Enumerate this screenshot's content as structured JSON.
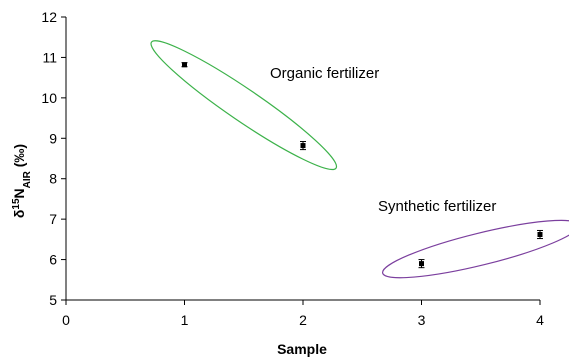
{
  "chart_data": {
    "type": "scatter",
    "xlabel": "Sample",
    "ylabel": {
      "main": "δ",
      "sup": "15",
      "sym": "N",
      "sub": "AIR",
      "unit": " (‰)"
    },
    "xlim": [
      0,
      4
    ],
    "ylim": [
      5,
      12
    ],
    "x_ticks": [
      "0",
      "1",
      "2",
      "3",
      "4"
    ],
    "y_ticks": [
      "5",
      "6",
      "7",
      "8",
      "9",
      "10",
      "11",
      "12"
    ],
    "grid": false,
    "legend": "none",
    "series": [
      {
        "points": [
          {
            "x": 1,
            "y": 10.82,
            "err": 0.05
          },
          {
            "x": 2,
            "y": 8.82,
            "err": 0.1
          },
          {
            "x": 3,
            "y": 5.9,
            "err": 0.1
          },
          {
            "x": 4,
            "y": 6.62,
            "err": 0.1
          }
        ],
        "color": "#000000"
      }
    ],
    "annotations": [
      {
        "text": "Organic fertilizer",
        "color": "#3cb24a",
        "group_x": [
          1,
          2
        ]
      },
      {
        "text": "Synthetic fertilizer",
        "color": "#7b3f9e",
        "group_x": [
          3,
          4
        ]
      }
    ]
  }
}
